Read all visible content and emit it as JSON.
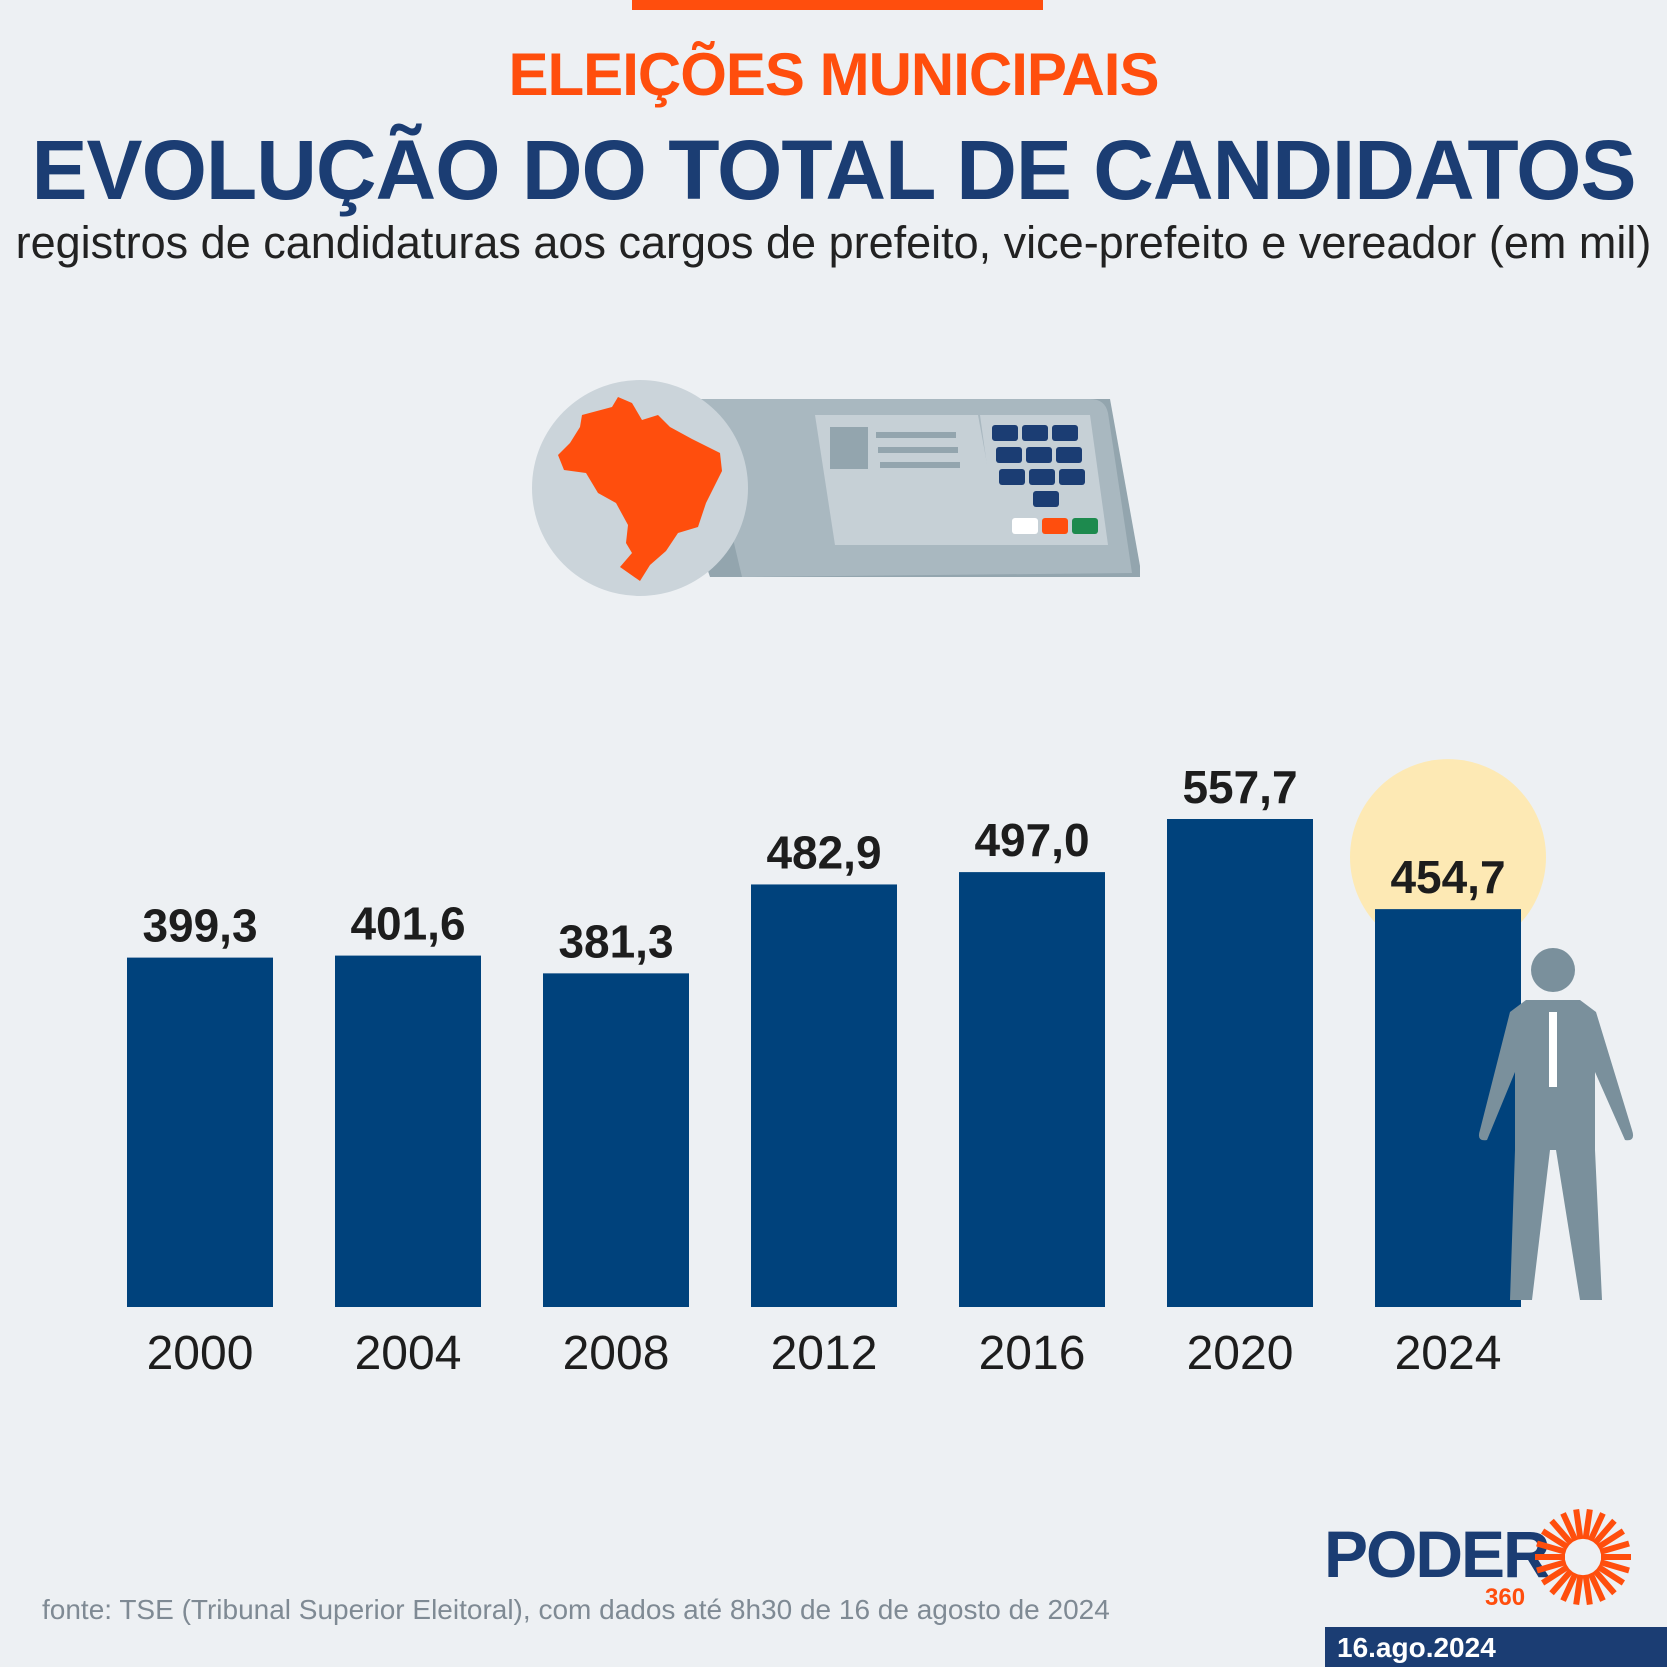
{
  "header": {
    "kicker": "ELEIÇÕES MUNICIPAIS",
    "title": "EVOLUÇÃO DO TOTAL DE CANDIDATOS",
    "subtitle": "registros de candidaturas aos cargos de prefeito, vice-prefeito e vereador (em mil)"
  },
  "chart_data": {
    "type": "bar",
    "title": "EVOLUÇÃO DO TOTAL DE CANDIDATOS",
    "subtitle": "registros de candidaturas aos cargos de prefeito, vice-prefeito e vereador (em mil)",
    "categories": [
      "2000",
      "2004",
      "2008",
      "2012",
      "2016",
      "2020",
      "2024"
    ],
    "values": [
      399.3,
      401.6,
      381.3,
      482.9,
      497.0,
      557.7,
      454.7
    ],
    "labels": [
      "399,3",
      "401,6",
      "381,3",
      "482,9",
      "497,0",
      "557,7",
      "454,7"
    ],
    "highlight": "2024",
    "xlabel": "",
    "ylabel": "",
    "ylim": [
      0,
      557.7
    ],
    "grid": false,
    "legend": "none"
  },
  "colors": {
    "bar": "#00427c",
    "highlight_circle": "#fde9b4",
    "accent": "#ff4e0d",
    "navy": "#1b3d73"
  },
  "footer": {
    "source": "fonte: TSE (Tribunal Superior Eleitoral), com dados até 8h30 de 16 de agosto de 2024",
    "logo_text": "PODER",
    "logo_sub": "360",
    "date": "16.ago.2024"
  }
}
